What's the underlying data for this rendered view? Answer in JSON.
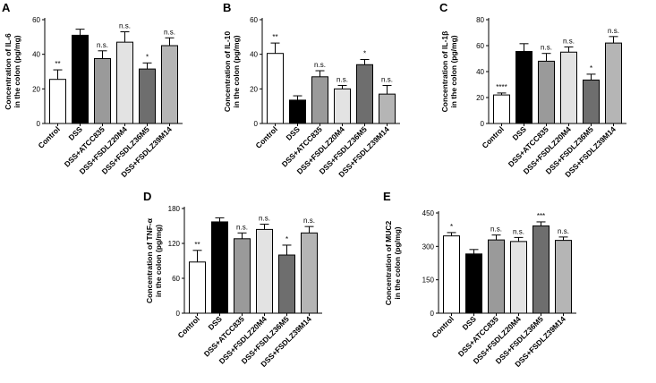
{
  "colors": {
    "Control": "#ffffff",
    "DSS": "#000000",
    "DSS+ATCC835": "#9a9a9a",
    "DSS+FSDLZ20M4": "#e3e3e3",
    "DSS+FSDLZ36M5": "#6e6e6e",
    "DSS+FSDLZ39M14": "#b5b5b5",
    "axis": "#000000"
  },
  "chart_data": [
    {
      "panel": "A",
      "type": "bar",
      "categories": [
        "Control",
        "DSS",
        "DSS+ATCC835",
        "DSS+FSDLZ20M4",
        "DSS+FSDLZ36M5",
        "DSS+FSDLZ39M14"
      ],
      "values": [
        25.5,
        51,
        37.5,
        47,
        31.5,
        45
      ],
      "errors": [
        5.5,
        3.5,
        4.5,
        6,
        3.5,
        4.5
      ],
      "significance": [
        "**",
        "",
        "n.s.",
        "n.s.",
        "*",
        "n.s."
      ],
      "ylabel_lines": [
        "Concentration of IL-6",
        "in the colon (pg/mg)"
      ],
      "ylim": [
        0,
        60
      ],
      "yticks": [
        0,
        20,
        40,
        60
      ]
    },
    {
      "panel": "B",
      "type": "bar",
      "categories": [
        "Control",
        "DSS",
        "DSS+ATCC835",
        "DSS+FSDLZ20M4",
        "DSS+FSDLZ36M5",
        "DSS+FSDLZ39M14"
      ],
      "values": [
        40.5,
        13.5,
        27,
        20,
        34,
        17
      ],
      "errors": [
        6,
        2.5,
        3.5,
        2,
        3,
        5
      ],
      "significance": [
        "**",
        "",
        "n.s.",
        "n.s.",
        "*",
        "n.s."
      ],
      "ylabel_lines": [
        "Concentration of IL-10",
        "in the colon (pg/mg)"
      ],
      "ylim": [
        0,
        60
      ],
      "yticks": [
        0,
        20,
        40,
        60
      ]
    },
    {
      "panel": "C",
      "type": "bar",
      "categories": [
        "Control",
        "DSS",
        "DSS+ATCC835",
        "DSS+FSDLZ20M4",
        "DSS+FSDLZ36M5",
        "DSS+FSDLZ39M14"
      ],
      "values": [
        22,
        55.5,
        48,
        55,
        33.5,
        62
      ],
      "errors": [
        1.5,
        6,
        6,
        4,
        4.5,
        5
      ],
      "significance": [
        "****",
        "",
        "n.s.",
        "n.s.",
        "*",
        "n.s."
      ],
      "ylabel_lines": [
        "Concentration of IL-1β",
        "in the colon (pg/mg)"
      ],
      "ylim": [
        0,
        80
      ],
      "yticks": [
        0,
        20,
        40,
        60,
        80
      ]
    },
    {
      "panel": "D",
      "type": "bar",
      "categories": [
        "Control",
        "DSS",
        "DSS+ATCC835",
        "DSS+FSDLZ20M4",
        "DSS+FSDLZ36M5",
        "DSS+FSDLZ39M14"
      ],
      "values": [
        88,
        157,
        128,
        144,
        100,
        138
      ],
      "errors": [
        20,
        7,
        10,
        9,
        17,
        11
      ],
      "significance": [
        "**",
        "",
        "n.s.",
        "n.s.",
        "*",
        "n.s."
      ],
      "ylabel_lines": [
        "Concentration of TNF-α",
        "in the colon (pg/mg)"
      ],
      "ylim": [
        0,
        180
      ],
      "yticks": [
        0,
        60,
        120,
        180
      ]
    },
    {
      "panel": "E",
      "type": "bar",
      "categories": [
        "Control",
        "DSS",
        "DSS+ATCC835",
        "DSS+FSDLZ20M4",
        "DSS+FSDLZ36M5",
        "DSS+FSDLZ39M14"
      ],
      "values": [
        347,
        266,
        329,
        322,
        392,
        327
      ],
      "errors": [
        15,
        20,
        22,
        18,
        18,
        15
      ],
      "significance": [
        "*",
        "",
        "n.s.",
        "n.s.",
        "***",
        "n.s."
      ],
      "ylabel_lines": [
        "Concentration of MUC2",
        "in the colon (pg/mg)"
      ],
      "ylim": [
        0,
        450
      ],
      "yticks": [
        0,
        150,
        300,
        450
      ]
    }
  ]
}
